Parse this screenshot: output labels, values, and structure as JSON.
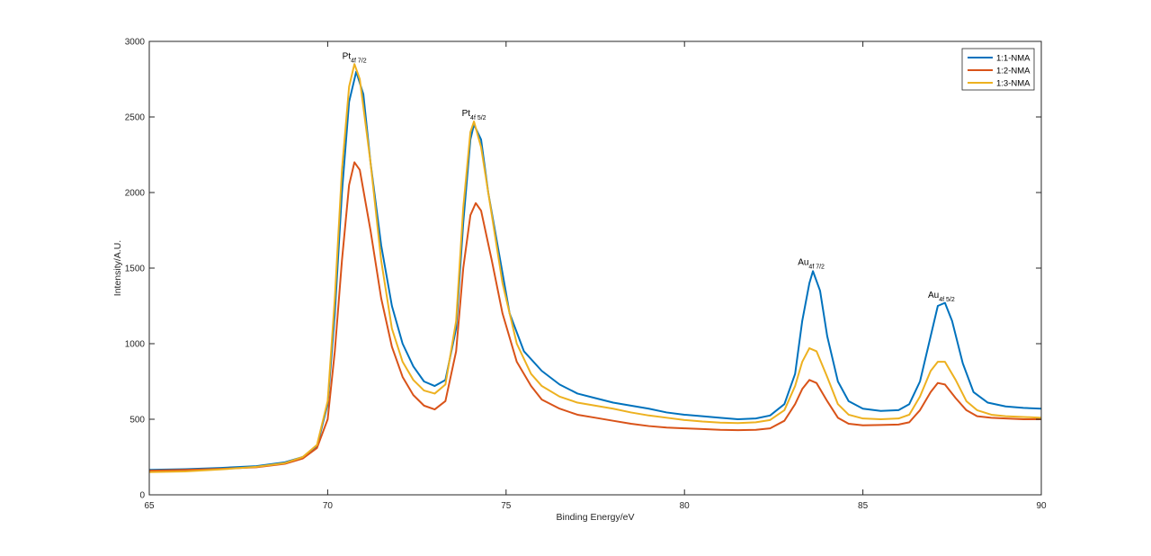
{
  "chart_data": {
    "type": "line",
    "title": "",
    "xlabel": "Binding Energy/eV",
    "ylabel": "Intensity/A.U.",
    "xlim": [
      65,
      90
    ],
    "ylim": [
      0,
      3000
    ],
    "xticks": [
      "65",
      "70",
      "75",
      "80",
      "85",
      "90"
    ],
    "yticks": [
      "0",
      "500",
      "1000",
      "1500",
      "2000",
      "2500",
      "3000"
    ],
    "grid": false,
    "legend_position": "top-right",
    "series": [
      {
        "name": "1:1-NMA",
        "color": "#0072BD",
        "points": [
          [
            65,
            165
          ],
          [
            66,
            170
          ],
          [
            67,
            178
          ],
          [
            68,
            190
          ],
          [
            68.8,
            215
          ],
          [
            69.3,
            250
          ],
          [
            69.7,
            320
          ],
          [
            70.0,
            600
          ],
          [
            70.2,
            1200
          ],
          [
            70.4,
            2000
          ],
          [
            70.6,
            2600
          ],
          [
            70.8,
            2800
          ],
          [
            71.0,
            2650
          ],
          [
            71.2,
            2200
          ],
          [
            71.5,
            1650
          ],
          [
            71.8,
            1250
          ],
          [
            72.1,
            1000
          ],
          [
            72.4,
            850
          ],
          [
            72.7,
            750
          ],
          [
            73.0,
            720
          ],
          [
            73.3,
            760
          ],
          [
            73.6,
            1100
          ],
          [
            73.8,
            1800
          ],
          [
            74.0,
            2350
          ],
          [
            74.1,
            2450
          ],
          [
            74.3,
            2350
          ],
          [
            74.5,
            2000
          ],
          [
            74.8,
            1600
          ],
          [
            75.1,
            1200
          ],
          [
            75.5,
            950
          ],
          [
            76,
            820
          ],
          [
            76.5,
            730
          ],
          [
            77,
            670
          ],
          [
            77.5,
            640
          ],
          [
            78,
            610
          ],
          [
            78.5,
            590
          ],
          [
            79,
            570
          ],
          [
            79.5,
            545
          ],
          [
            80,
            530
          ],
          [
            80.5,
            520
          ],
          [
            81,
            510
          ],
          [
            81.5,
            500
          ],
          [
            82,
            505
          ],
          [
            82.4,
            525
          ],
          [
            82.8,
            600
          ],
          [
            83.1,
            800
          ],
          [
            83.3,
            1150
          ],
          [
            83.5,
            1400
          ],
          [
            83.6,
            1480
          ],
          [
            83.8,
            1350
          ],
          [
            84.0,
            1050
          ],
          [
            84.3,
            750
          ],
          [
            84.6,
            620
          ],
          [
            85,
            570
          ],
          [
            85.5,
            555
          ],
          [
            86,
            560
          ],
          [
            86.3,
            600
          ],
          [
            86.6,
            750
          ],
          [
            86.9,
            1050
          ],
          [
            87.1,
            1250
          ],
          [
            87.3,
            1270
          ],
          [
            87.5,
            1150
          ],
          [
            87.8,
            870
          ],
          [
            88.1,
            680
          ],
          [
            88.5,
            610
          ],
          [
            89,
            585
          ],
          [
            89.5,
            575
          ],
          [
            90,
            570
          ]
        ]
      },
      {
        "name": "1:2-NMA",
        "color": "#D95319",
        "points": [
          [
            65,
            160
          ],
          [
            66,
            165
          ],
          [
            67,
            172
          ],
          [
            68,
            182
          ],
          [
            68.8,
            205
          ],
          [
            69.3,
            240
          ],
          [
            69.7,
            310
          ],
          [
            70.0,
            500
          ],
          [
            70.2,
            950
          ],
          [
            70.4,
            1550
          ],
          [
            70.6,
            2050
          ],
          [
            70.75,
            2200
          ],
          [
            70.9,
            2150
          ],
          [
            71.2,
            1750
          ],
          [
            71.5,
            1300
          ],
          [
            71.8,
            980
          ],
          [
            72.1,
            780
          ],
          [
            72.4,
            660
          ],
          [
            72.7,
            590
          ],
          [
            73.0,
            565
          ],
          [
            73.3,
            620
          ],
          [
            73.6,
            950
          ],
          [
            73.8,
            1500
          ],
          [
            74.0,
            1850
          ],
          [
            74.15,
            1930
          ],
          [
            74.3,
            1880
          ],
          [
            74.6,
            1550
          ],
          [
            74.9,
            1200
          ],
          [
            75.3,
            880
          ],
          [
            75.7,
            720
          ],
          [
            76,
            630
          ],
          [
            76.5,
            570
          ],
          [
            77,
            530
          ],
          [
            77.5,
            510
          ],
          [
            78,
            490
          ],
          [
            78.5,
            470
          ],
          [
            79,
            455
          ],
          [
            79.5,
            445
          ],
          [
            80,
            440
          ],
          [
            80.5,
            435
          ],
          [
            81,
            430
          ],
          [
            81.5,
            428
          ],
          [
            82,
            430
          ],
          [
            82.4,
            440
          ],
          [
            82.8,
            490
          ],
          [
            83.1,
            600
          ],
          [
            83.3,
            700
          ],
          [
            83.5,
            760
          ],
          [
            83.7,
            740
          ],
          [
            84.0,
            620
          ],
          [
            84.3,
            510
          ],
          [
            84.6,
            470
          ],
          [
            85,
            460
          ],
          [
            85.5,
            462
          ],
          [
            86,
            465
          ],
          [
            86.3,
            480
          ],
          [
            86.6,
            560
          ],
          [
            86.9,
            680
          ],
          [
            87.1,
            740
          ],
          [
            87.3,
            730
          ],
          [
            87.6,
            640
          ],
          [
            87.9,
            560
          ],
          [
            88.2,
            520
          ],
          [
            88.6,
            510
          ],
          [
            89,
            505
          ],
          [
            89.5,
            500
          ],
          [
            90,
            500
          ]
        ]
      },
      {
        "name": "1:3-NMA",
        "color": "#EDB120",
        "points": [
          [
            65,
            150
          ],
          [
            66,
            155
          ],
          [
            67,
            168
          ],
          [
            68,
            185
          ],
          [
            68.8,
            210
          ],
          [
            69.3,
            250
          ],
          [
            69.7,
            330
          ],
          [
            70.0,
            620
          ],
          [
            70.2,
            1300
          ],
          [
            70.4,
            2150
          ],
          [
            70.6,
            2700
          ],
          [
            70.75,
            2850
          ],
          [
            70.9,
            2750
          ],
          [
            71.2,
            2200
          ],
          [
            71.5,
            1550
          ],
          [
            71.8,
            1100
          ],
          [
            72.1,
            880
          ],
          [
            72.4,
            760
          ],
          [
            72.7,
            690
          ],
          [
            73.0,
            670
          ],
          [
            73.3,
            730
          ],
          [
            73.6,
            1150
          ],
          [
            73.8,
            1900
          ],
          [
            74.0,
            2400
          ],
          [
            74.1,
            2470
          ],
          [
            74.3,
            2300
          ],
          [
            74.6,
            1850
          ],
          [
            74.9,
            1400
          ],
          [
            75.3,
            1000
          ],
          [
            75.7,
            800
          ],
          [
            76,
            720
          ],
          [
            76.5,
            650
          ],
          [
            77,
            610
          ],
          [
            77.5,
            590
          ],
          [
            78,
            570
          ],
          [
            78.5,
            545
          ],
          [
            79,
            525
          ],
          [
            79.5,
            510
          ],
          [
            80,
            495
          ],
          [
            80.5,
            485
          ],
          [
            81,
            478
          ],
          [
            81.5,
            475
          ],
          [
            82,
            480
          ],
          [
            82.4,
            495
          ],
          [
            82.8,
            560
          ],
          [
            83.1,
            720
          ],
          [
            83.3,
            880
          ],
          [
            83.5,
            970
          ],
          [
            83.7,
            950
          ],
          [
            84.0,
            780
          ],
          [
            84.3,
            600
          ],
          [
            84.6,
            530
          ],
          [
            85,
            505
          ],
          [
            85.5,
            500
          ],
          [
            86,
            505
          ],
          [
            86.3,
            530
          ],
          [
            86.6,
            650
          ],
          [
            86.9,
            820
          ],
          [
            87.1,
            880
          ],
          [
            87.3,
            880
          ],
          [
            87.6,
            760
          ],
          [
            87.9,
            620
          ],
          [
            88.2,
            560
          ],
          [
            88.6,
            530
          ],
          [
            89,
            520
          ],
          [
            89.5,
            515
          ],
          [
            90,
            510
          ]
        ]
      }
    ],
    "annotations": [
      {
        "base": "Pt",
        "sub": "4f 7/2",
        "x": 70.75,
        "y": 2885
      },
      {
        "base": "Pt",
        "sub": "4f 5/2",
        "x": 74.1,
        "y": 2505
      },
      {
        "base": "Au",
        "sub": "4f 7/2",
        "x": 83.55,
        "y": 1520
      },
      {
        "base": "Au",
        "sub": "4f 5/2",
        "x": 87.2,
        "y": 1305
      }
    ]
  }
}
